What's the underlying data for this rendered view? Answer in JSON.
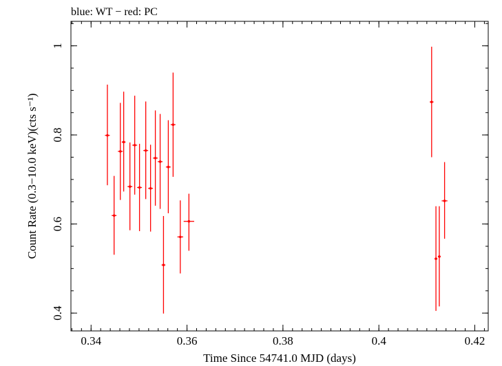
{
  "header": {
    "title": "blue: WT − red: PC"
  },
  "colors": {
    "axis": "#000000",
    "pc": "#ff0000",
    "background": "#ffffff"
  },
  "chart_data": {
    "type": "scatter",
    "title": "blue: WT − red: PC",
    "xlabel": "Time Since 54741.0 MJD (days)",
    "ylabel": "Count Rate (0.3−10.0 keV)(cts s⁻¹)",
    "xlim": [
      0.3358,
      0.4228
    ],
    "ylim": [
      0.36,
      1.055
    ],
    "xticks": [
      {
        "value": 0.34,
        "label": "0.34"
      },
      {
        "value": 0.36,
        "label": "0.36"
      },
      {
        "value": 0.38,
        "label": "0.38"
      },
      {
        "value": 0.4,
        "label": "0.4"
      },
      {
        "value": 0.42,
        "label": "0.42"
      }
    ],
    "yticks": [
      {
        "value": 0.4,
        "label": "0.4"
      },
      {
        "value": 0.6,
        "label": "0.6"
      },
      {
        "value": 0.8,
        "label": "0.8"
      },
      {
        "value": 1.0,
        "label": "1"
      }
    ],
    "xminor_step": 0.002,
    "yminor_step": 0.05,
    "grid": false,
    "series": [
      {
        "name": "PC",
        "color": "#ff0000",
        "points": [
          {
            "x": 0.3434,
            "y": 0.799,
            "ylow": 0.687,
            "yhigh": 0.913,
            "xerr": 0.0005
          },
          {
            "x": 0.3448,
            "y": 0.619,
            "ylow": 0.531,
            "yhigh": 0.708,
            "xerr": 0.0005
          },
          {
            "x": 0.3461,
            "y": 0.763,
            "ylow": 0.654,
            "yhigh": 0.872,
            "xerr": 0.0005
          },
          {
            "x": 0.3468,
            "y": 0.784,
            "ylow": 0.673,
            "yhigh": 0.897,
            "xerr": 0.0004
          },
          {
            "x": 0.3481,
            "y": 0.684,
            "ylow": 0.586,
            "yhigh": 0.783,
            "xerr": 0.0005
          },
          {
            "x": 0.3491,
            "y": 0.777,
            "ylow": 0.666,
            "yhigh": 0.888,
            "xerr": 0.0005
          },
          {
            "x": 0.3501,
            "y": 0.682,
            "ylow": 0.584,
            "yhigh": 0.78,
            "xerr": 0.0005
          },
          {
            "x": 0.3514,
            "y": 0.765,
            "ylow": 0.656,
            "yhigh": 0.875,
            "xerr": 0.0005
          },
          {
            "x": 0.3524,
            "y": 0.68,
            "ylow": 0.583,
            "yhigh": 0.778,
            "xerr": 0.0005
          },
          {
            "x": 0.3534,
            "y": 0.748,
            "ylow": 0.641,
            "yhigh": 0.855,
            "xerr": 0.0005
          },
          {
            "x": 0.3544,
            "y": 0.74,
            "ylow": 0.634,
            "yhigh": 0.847,
            "xerr": 0.0005
          },
          {
            "x": 0.3551,
            "y": 0.508,
            "ylow": 0.399,
            "yhigh": 0.618,
            "xerr": 0.0004
          },
          {
            "x": 0.3561,
            "y": 0.728,
            "ylow": 0.624,
            "yhigh": 0.833,
            "xerr": 0.0005
          },
          {
            "x": 0.3571,
            "y": 0.823,
            "ylow": 0.706,
            "yhigh": 0.94,
            "xerr": 0.0005
          },
          {
            "x": 0.3586,
            "y": 0.571,
            "ylow": 0.489,
            "yhigh": 0.653,
            "xerr": 0.0006
          },
          {
            "x": 0.3604,
            "y": 0.606,
            "ylow": 0.54,
            "yhigh": 0.668,
            "xerr": 0.0011
          },
          {
            "x": 0.411,
            "y": 0.874,
            "ylow": 0.75,
            "yhigh": 0.998,
            "xerr": 0.0004
          },
          {
            "x": 0.4119,
            "y": 0.522,
            "ylow": 0.405,
            "yhigh": 0.64,
            "xerr": 0.0003
          },
          {
            "x": 0.4126,
            "y": 0.527,
            "ylow": 0.415,
            "yhigh": 0.64,
            "xerr": 0.0003
          },
          {
            "x": 0.4137,
            "y": 0.652,
            "ylow": 0.567,
            "yhigh": 0.739,
            "xerr": 0.0006
          }
        ]
      }
    ]
  }
}
